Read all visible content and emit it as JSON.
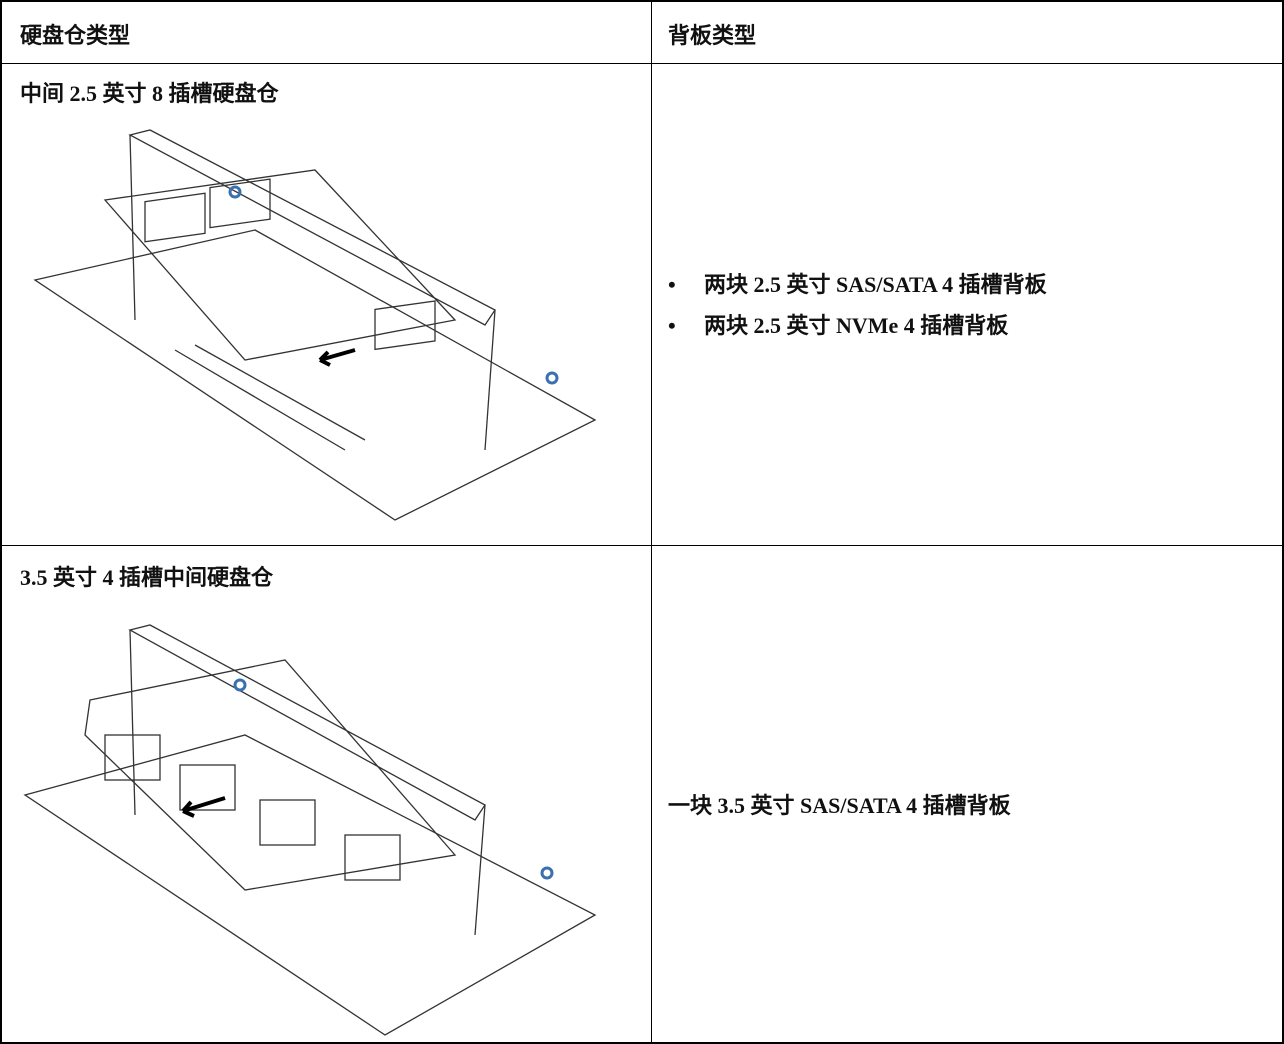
{
  "table": {
    "header": [
      "硬盘仓类型",
      "背板类型"
    ],
    "rows": [
      [
        "中间 2.5 英寸 8 插槽硬盘仓",
        [
          "两块 2.5 英寸 SAS/SATA 4 插槽背板",
          "两块 2.5 英寸 NVMe 4 插槽背板"
        ]
      ],
      [
        "3.5 英寸 4 插槽中间硬盘仓",
        "一块 3.5 英寸 SAS/SATA 4 插槽背板"
      ]
    ]
  }
}
